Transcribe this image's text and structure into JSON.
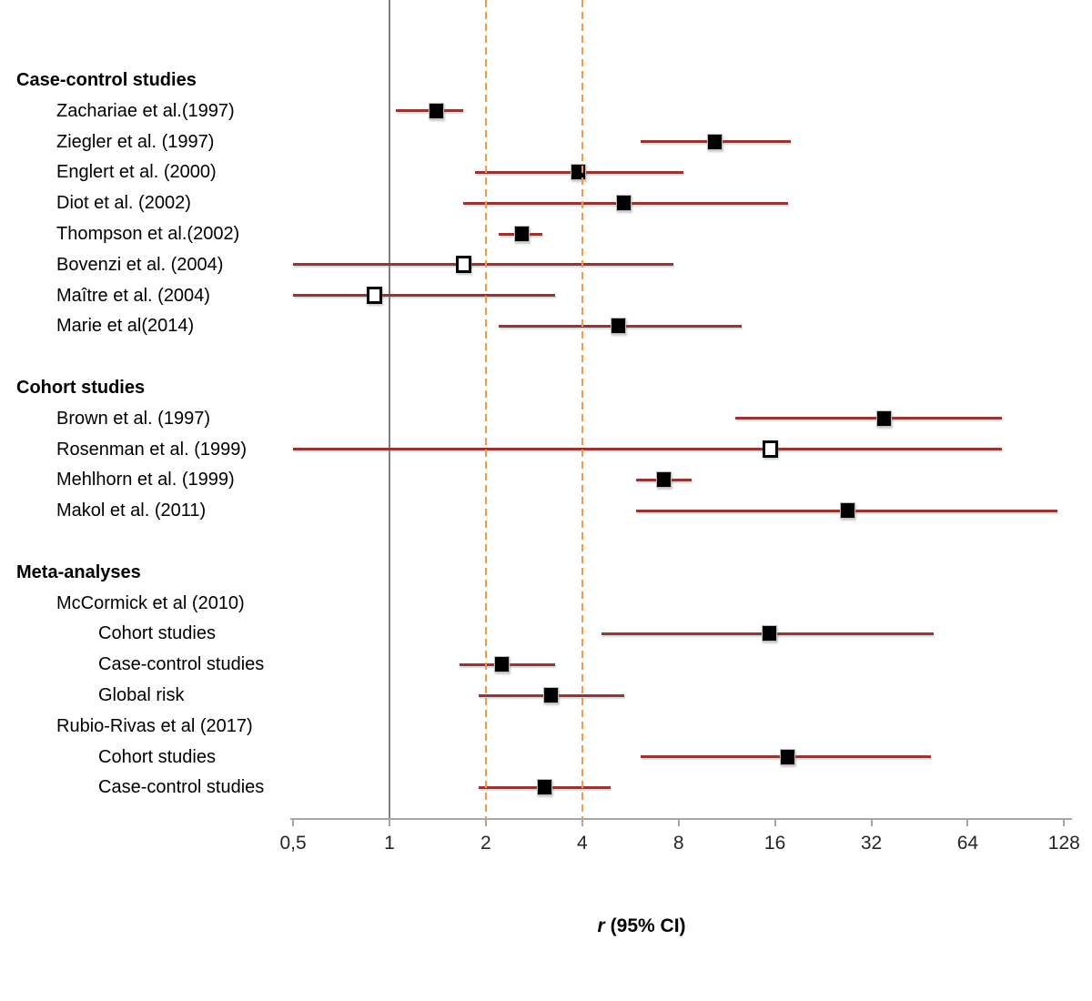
{
  "chart_data": {
    "type": "forest",
    "title": "",
    "x_axis": {
      "scale": "log2",
      "min": 0.5,
      "max": 128,
      "ticks": [
        {
          "value": 0.5,
          "label": "0,5"
        },
        {
          "value": 1,
          "label": "1"
        },
        {
          "value": 2,
          "label": "2"
        },
        {
          "value": 4,
          "label": "4"
        },
        {
          "value": 8,
          "label": "8"
        },
        {
          "value": 16,
          "label": "16"
        },
        {
          "value": 32,
          "label": "32"
        },
        {
          "value": 64,
          "label": "64"
        },
        {
          "value": 128,
          "label": "128"
        }
      ],
      "title_italic": "r",
      "title_rest": "(95% CI)"
    },
    "reference_lines": [
      {
        "value": 1,
        "style": "solid",
        "color": "#808080"
      },
      {
        "value": 2,
        "style": "dashed",
        "color": "#F79646"
      },
      {
        "value": 4,
        "style": "dashed",
        "color": "#F79646"
      }
    ],
    "colors": {
      "ci_line": "#963634",
      "marker_filled": "#000000",
      "marker_open_fill": "#ffffff",
      "axis": "#A6A6A6"
    },
    "rows": [
      {
        "label": "Case-control studies",
        "kind": "header",
        "indent": 0
      },
      {
        "label": "Zachariae et al.(1997)",
        "kind": "study",
        "indent": 1,
        "estimate": 1.4,
        "ci_low": 1.05,
        "ci_high": 1.7,
        "marker": "filled"
      },
      {
        "label": "Ziegler et al. (1997)",
        "kind": "study",
        "indent": 1,
        "estimate": 10.4,
        "ci_low": 6.1,
        "ci_high": 17.9,
        "marker": "filled"
      },
      {
        "label": "Englert et al. (2000)",
        "kind": "study",
        "indent": 1,
        "estimate": 3.9,
        "ci_low": 1.85,
        "ci_high": 8.3,
        "marker": "filled"
      },
      {
        "label": "Diot et al. (2002)",
        "kind": "study",
        "indent": 1,
        "estimate": 5.4,
        "ci_low": 1.7,
        "ci_high": 17.6,
        "marker": "filled"
      },
      {
        "label": "Thompson et al.(2002)",
        "kind": "study",
        "indent": 1,
        "estimate": 2.6,
        "ci_low": 2.2,
        "ci_high": 3.0,
        "marker": "filled"
      },
      {
        "label": "Bovenzi et al. (2004)",
        "kind": "study",
        "indent": 1,
        "estimate": 1.7,
        "ci_low": 0.5,
        "ci_high": 7.7,
        "marker": "open"
      },
      {
        "label": "Maître et al. (2004)",
        "kind": "study",
        "indent": 1,
        "estimate": 0.9,
        "ci_low": 0.5,
        "ci_high": 3.3,
        "marker": "open"
      },
      {
        "label": "Marie et al(2014)",
        "kind": "study",
        "indent": 1,
        "estimate": 5.2,
        "ci_low": 2.2,
        "ci_high": 12.6,
        "marker": "filled"
      },
      {
        "label": "",
        "kind": "spacer",
        "indent": 0
      },
      {
        "label": "Cohort studies",
        "kind": "header",
        "indent": 0
      },
      {
        "label": "Brown et al. (1997)",
        "kind": "study",
        "indent": 1,
        "estimate": 35,
        "ci_low": 12,
        "ci_high": 82,
        "marker": "filled"
      },
      {
        "label": "Rosenman et al. (1999)",
        "kind": "study",
        "indent": 1,
        "estimate": 15.5,
        "ci_low": 0.5,
        "ci_high": 82,
        "marker": "open"
      },
      {
        "label": "Mehlhorn et al. (1999)",
        "kind": "study",
        "indent": 1,
        "estimate": 7.2,
        "ci_low": 5.9,
        "ci_high": 8.8,
        "marker": "filled"
      },
      {
        "label": "Makol et al. (2011)",
        "kind": "study",
        "indent": 1,
        "estimate": 27,
        "ci_low": 5.9,
        "ci_high": 122,
        "marker": "filled"
      },
      {
        "label": "",
        "kind": "spacer",
        "indent": 0
      },
      {
        "label": "Meta-analyses",
        "kind": "header",
        "indent": 0
      },
      {
        "label": "McCormick et al (2010)",
        "kind": "group",
        "indent": 1
      },
      {
        "label": "Cohort studies",
        "kind": "study",
        "indent": 2,
        "estimate": 15.4,
        "ci_low": 4.6,
        "ci_high": 50,
        "marker": "filled"
      },
      {
        "label": "Case-control studies",
        "kind": "study",
        "indent": 2,
        "estimate": 2.25,
        "ci_low": 1.66,
        "ci_high": 3.3,
        "marker": "filled"
      },
      {
        "label": "Global risk",
        "kind": "study",
        "indent": 2,
        "estimate": 3.2,
        "ci_low": 1.9,
        "ci_high": 5.4,
        "marker": "filled"
      },
      {
        "label": "Rubio-Rivas et al (2017)",
        "kind": "group",
        "indent": 1
      },
      {
        "label": "Cohort studies",
        "kind": "study",
        "indent": 2,
        "estimate": 17.5,
        "ci_low": 6.1,
        "ci_high": 49,
        "marker": "filled"
      },
      {
        "label": "Case-control studies",
        "kind": "study",
        "indent": 2,
        "estimate": 3.05,
        "ci_low": 1.9,
        "ci_high": 4.9,
        "marker": "filled"
      }
    ]
  }
}
